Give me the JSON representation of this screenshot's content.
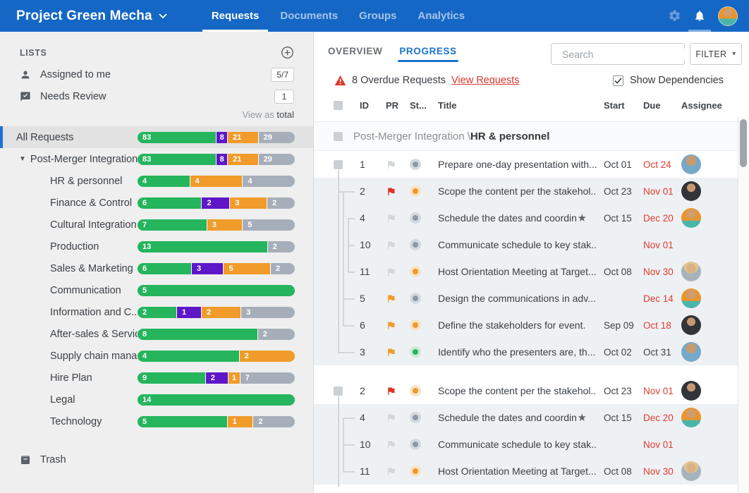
{
  "topbar": {
    "title": "Project Green Mecha",
    "tabs": [
      {
        "label": "Requests",
        "active": true
      },
      {
        "label": "Documents",
        "active": false
      },
      {
        "label": "Groups",
        "active": false
      },
      {
        "label": "Analytics",
        "active": false
      }
    ]
  },
  "sidebar": {
    "header": "LISTS",
    "shortcuts": [
      {
        "icon": "person-icon",
        "label": "Assigned to me",
        "badge": "5/7"
      },
      {
        "icon": "review-icon",
        "label": "Needs Review",
        "badge": "1"
      }
    ],
    "view_as_prefix": "View as",
    "view_as_value": "total",
    "trash_label": "Trash",
    "colors": {
      "green": "#25b55d",
      "purple": "#5e16c9",
      "orange": "#f09b2a",
      "gray": "#a6afb9"
    },
    "lists": [
      {
        "label": "All Requests",
        "level": 0,
        "selected": true,
        "segments": [
          {
            "color": "green",
            "value": 83
          },
          {
            "color": "purple",
            "value": 8
          },
          {
            "color": "orange",
            "value": 21
          },
          {
            "color": "gray",
            "value": 29
          }
        ]
      },
      {
        "label": "Post-Merger Integration",
        "level": 1,
        "expanded": true,
        "segments": [
          {
            "color": "green",
            "value": 83
          },
          {
            "color": "purple",
            "value": 8
          },
          {
            "color": "orange",
            "value": 21
          },
          {
            "color": "gray",
            "value": 29
          }
        ]
      },
      {
        "label": "HR & personnel",
        "level": 2,
        "segments": [
          {
            "color": "green",
            "value": 4
          },
          {
            "color": "orange",
            "value": 4
          },
          {
            "color": "gray",
            "value": 4
          }
        ]
      },
      {
        "label": "Finance & Control",
        "level": 2,
        "segments": [
          {
            "color": "green",
            "value": 6
          },
          {
            "color": "purple",
            "value": 2
          },
          {
            "color": "orange",
            "value": 3
          },
          {
            "color": "gray",
            "value": 2
          }
        ]
      },
      {
        "label": "Cultural Integration",
        "level": 2,
        "segments": [
          {
            "color": "green",
            "value": 7
          },
          {
            "color": "orange",
            "value": 3
          },
          {
            "color": "gray",
            "value": 5
          }
        ]
      },
      {
        "label": "Production",
        "level": 2,
        "segments": [
          {
            "color": "green",
            "value": 13
          },
          {
            "color": "gray",
            "value": 2
          }
        ]
      },
      {
        "label": "Sales & Marketing",
        "level": 2,
        "segments": [
          {
            "color": "green",
            "value": 6
          },
          {
            "color": "purple",
            "value": 3
          },
          {
            "color": "orange",
            "value": 5
          },
          {
            "color": "gray",
            "value": 2
          }
        ]
      },
      {
        "label": "Communication",
        "level": 2,
        "segments": [
          {
            "color": "green",
            "value": 5
          }
        ]
      },
      {
        "label": "Information and C...",
        "level": 2,
        "segments": [
          {
            "color": "green",
            "value": 2
          },
          {
            "color": "purple",
            "value": 1
          },
          {
            "color": "orange",
            "value": 2
          },
          {
            "color": "gray",
            "value": 3
          }
        ]
      },
      {
        "label": "After-sales & Service",
        "level": 2,
        "segments": [
          {
            "color": "green",
            "value": 8
          },
          {
            "color": "gray",
            "value": 2
          }
        ]
      },
      {
        "label": "Supply chain mana...",
        "level": 2,
        "segments": [
          {
            "color": "green",
            "value": 4
          },
          {
            "color": "orange",
            "value": 2
          }
        ]
      },
      {
        "label": "Hire Plan",
        "level": 2,
        "segments": [
          {
            "color": "green",
            "value": 9
          },
          {
            "color": "purple",
            "value": 2
          },
          {
            "color": "orange",
            "value": 1
          },
          {
            "color": "gray",
            "value": 7
          }
        ]
      },
      {
        "label": "Legal",
        "level": 2,
        "segments": [
          {
            "color": "green",
            "value": 14
          }
        ]
      },
      {
        "label": "Technology",
        "level": 2,
        "segments": [
          {
            "color": "green",
            "value": 5
          },
          {
            "color": "orange",
            "value": 1
          },
          {
            "color": "gray",
            "value": 2
          }
        ]
      }
    ]
  },
  "main": {
    "tabs": [
      {
        "label": "OVERVIEW",
        "active": false
      },
      {
        "label": "PROGRESS",
        "active": true
      }
    ],
    "search_placeholder": "Search",
    "filter_label": "FILTER",
    "overdue_text": "8 Overdue Requests",
    "overdue_link": "View Requests",
    "show_dependencies_label": "Show Dependencies",
    "table": {
      "columns": [
        "ID",
        "PR",
        "St...",
        "Title",
        "Start",
        "Due",
        "Assignee"
      ],
      "groups": [
        {
          "header_prefix": "Post-Merger Integration \\",
          "header_bold": "HR & personnel",
          "rows": [
            {
              "id": "1",
              "flag": "gray",
              "status": "gray",
              "title": "Prepare one-day presentation with...",
              "star": false,
              "start": "Oct 01",
              "due": "Oct 24",
              "overdue": true,
              "avatar": "man-blue",
              "child": false
            },
            {
              "id": "2",
              "flag": "red",
              "status": "orange",
              "title": "Scope the content per the stakehol...",
              "star": false,
              "start": "Oct 23",
              "due": "Nov 01",
              "overdue": true,
              "avatar": "woman-dark",
              "child": true
            },
            {
              "id": "4",
              "flag": "gray",
              "status": "gray",
              "title": "Schedule the dates and coordin...",
              "star": true,
              "start": "Oct 15",
              "due": "Dec 20",
              "overdue": true,
              "avatar": "man-orange",
              "child": true
            },
            {
              "id": "10",
              "flag": "gray",
              "status": "gray",
              "title": "Communicate schedule to key stak...",
              "star": false,
              "start": "",
              "due": "Nov 01",
              "overdue": true,
              "avatar": null,
              "child": true
            },
            {
              "id": "11",
              "flag": "gray",
              "status": "orange",
              "title": "Host Orientation Meeting at Target...",
              "star": false,
              "start": "Oct 08",
              "due": "Nov 30",
              "overdue": true,
              "avatar": "woman-blonde",
              "child": true
            },
            {
              "id": "5",
              "flag": "orange",
              "status": "gray",
              "title": "Design the communications in adv...",
              "star": false,
              "start": "",
              "due": "Dec 14",
              "overdue": true,
              "avatar": "man-orange",
              "child": true
            },
            {
              "id": "6",
              "flag": "orange",
              "status": "orange",
              "title": "Define the stakeholders for event.",
              "star": false,
              "start": "Sep 09",
              "due": "Oct 18",
              "overdue": true,
              "avatar": "woman-dark",
              "child": true
            },
            {
              "id": "3",
              "flag": "orange",
              "status": "green",
              "title": "Identify who the presenters are, th...",
              "star": false,
              "start": "Oct 02",
              "due": "Oct 31",
              "overdue": false,
              "avatar": "man-blue",
              "child": true
            }
          ]
        },
        {
          "header_prefix": null,
          "header_bold": null,
          "rows": [
            {
              "id": "2",
              "flag": "red",
              "status": "orange",
              "title": "Scope the content per the stakehol...",
              "star": false,
              "start": "Oct 23",
              "due": "Nov 01",
              "overdue": true,
              "avatar": "woman-dark",
              "child": false
            },
            {
              "id": "4",
              "flag": "gray",
              "status": "gray",
              "title": "Schedule the dates and coordin...",
              "star": true,
              "start": "Oct 15",
              "due": "Dec 20",
              "overdue": true,
              "avatar": "man-orange",
              "child": true
            },
            {
              "id": "10",
              "flag": "gray",
              "status": "gray",
              "title": "Communicate schedule to key stak...",
              "star": false,
              "start": "",
              "due": "Nov 01",
              "overdue": true,
              "avatar": null,
              "child": true
            },
            {
              "id": "11",
              "flag": "gray",
              "status": "orange",
              "title": "Host Orientation Meeting at Target...",
              "star": false,
              "start": "Oct 08",
              "due": "Nov 30",
              "overdue": true,
              "avatar": "woman-blonde",
              "child": true
            }
          ]
        }
      ]
    }
  }
}
